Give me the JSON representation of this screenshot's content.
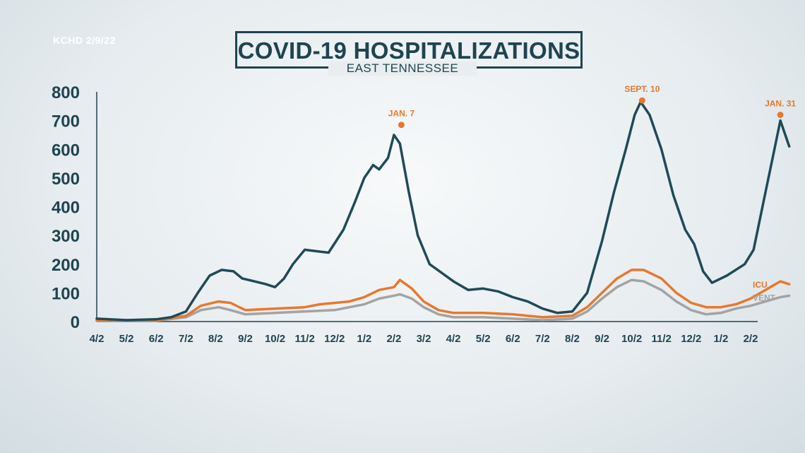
{
  "header": {
    "source": "KCHD 2/9/22",
    "title": "COVID-19 HOSPITALIZATIONS",
    "subtitle": "EAST TENNESSEE"
  },
  "colors": {
    "hospitalized": "#1f4a58",
    "icu": "#e8782e",
    "vent": "#a3a3a3",
    "axis": "#1f4450",
    "annotation": "#e8782e"
  },
  "chart_data": {
    "type": "line",
    "title": "COVID-19 HOSPITALIZATIONS",
    "subtitle": "EAST TENNESSEE",
    "xlabel": "",
    "ylabel": "",
    "ylim": [
      0,
      800
    ],
    "yticks": [
      0,
      100,
      200,
      300,
      400,
      500,
      600,
      700,
      800
    ],
    "xticks": [
      "4/2",
      "5/2",
      "6/2",
      "7/2",
      "8/2",
      "9/2",
      "10/2",
      "11/2",
      "12/2",
      "1/2",
      "2/2",
      "3/2",
      "4/2",
      "5/2",
      "6/2",
      "7/2",
      "8/2",
      "9/2",
      "10/2",
      "11/2",
      "12/2",
      "1/2",
      "2/2"
    ],
    "xlim": [
      0,
      22.3
    ],
    "grid": false,
    "series": [
      {
        "name": "",
        "points": [
          [
            0,
            10
          ],
          [
            1,
            5
          ],
          [
            2,
            8
          ],
          [
            2.5,
            15
          ],
          [
            3,
            35
          ],
          [
            3.4,
            100
          ],
          [
            3.8,
            160
          ],
          [
            4.2,
            180
          ],
          [
            4.6,
            175
          ],
          [
            4.9,
            150
          ],
          [
            5.3,
            140
          ],
          [
            5.7,
            130
          ],
          [
            6,
            120
          ],
          [
            6.3,
            150
          ],
          [
            6.6,
            200
          ],
          [
            7,
            250
          ],
          [
            7.4,
            245
          ],
          [
            7.8,
            240
          ],
          [
            8.3,
            320
          ],
          [
            8.7,
            420
          ],
          [
            9,
            500
          ],
          [
            9.3,
            545
          ],
          [
            9.5,
            530
          ],
          [
            9.8,
            570
          ],
          [
            10,
            650
          ],
          [
            10.2,
            620
          ],
          [
            10.5,
            450
          ],
          [
            10.8,
            300
          ],
          [
            11.2,
            200
          ],
          [
            11.6,
            170
          ],
          [
            12,
            140
          ],
          [
            12.5,
            110
          ],
          [
            13,
            115
          ],
          [
            13.5,
            105
          ],
          [
            14,
            85
          ],
          [
            14.5,
            70
          ],
          [
            15,
            45
          ],
          [
            15.5,
            30
          ],
          [
            16,
            35
          ],
          [
            16.5,
            100
          ],
          [
            17,
            280
          ],
          [
            17.4,
            450
          ],
          [
            17.8,
            600
          ],
          [
            18.1,
            720
          ],
          [
            18.3,
            765
          ],
          [
            18.6,
            720
          ],
          [
            19,
            600
          ],
          [
            19.4,
            440
          ],
          [
            19.8,
            320
          ],
          [
            20.1,
            270
          ],
          [
            20.4,
            175
          ],
          [
            20.7,
            135
          ],
          [
            21.2,
            160
          ],
          [
            21.8,
            200
          ],
          [
            22.1,
            250
          ],
          [
            22.5,
            450
          ],
          [
            22.8,
            600
          ],
          [
            23,
            700
          ],
          [
            23.2,
            640
          ],
          [
            23.3,
            610
          ]
        ]
      },
      {
        "name": "ICU",
        "points": [
          [
            0,
            5
          ],
          [
            2,
            5
          ],
          [
            3,
            20
          ],
          [
            3.5,
            55
          ],
          [
            4.1,
            70
          ],
          [
            4.5,
            65
          ],
          [
            5,
            40
          ],
          [
            6,
            45
          ],
          [
            7,
            50
          ],
          [
            7.5,
            60
          ],
          [
            8.5,
            70
          ],
          [
            9,
            85
          ],
          [
            9.5,
            110
          ],
          [
            10,
            120
          ],
          [
            10.2,
            145
          ],
          [
            10.6,
            115
          ],
          [
            11,
            70
          ],
          [
            11.5,
            40
          ],
          [
            12,
            30
          ],
          [
            13,
            30
          ],
          [
            14,
            25
          ],
          [
            15,
            15
          ],
          [
            16,
            20
          ],
          [
            16.5,
            50
          ],
          [
            17,
            100
          ],
          [
            17.5,
            150
          ],
          [
            18,
            180
          ],
          [
            18.4,
            180
          ],
          [
            19,
            150
          ],
          [
            19.5,
            100
          ],
          [
            20,
            65
          ],
          [
            20.5,
            50
          ],
          [
            21,
            50
          ],
          [
            21.5,
            60
          ],
          [
            22,
            80
          ],
          [
            22.5,
            110
          ],
          [
            23,
            140
          ],
          [
            23.3,
            130
          ]
        ]
      },
      {
        "name": "VENT",
        "points": [
          [
            0,
            3
          ],
          [
            2,
            3
          ],
          [
            3,
            15
          ],
          [
            3.5,
            40
          ],
          [
            4.1,
            50
          ],
          [
            4.5,
            40
          ],
          [
            5,
            25
          ],
          [
            6,
            30
          ],
          [
            7,
            35
          ],
          [
            8,
            40
          ],
          [
            9,
            60
          ],
          [
            9.5,
            80
          ],
          [
            10,
            90
          ],
          [
            10.2,
            95
          ],
          [
            10.6,
            80
          ],
          [
            11,
            50
          ],
          [
            11.5,
            25
          ],
          [
            12,
            15
          ],
          [
            13,
            15
          ],
          [
            14,
            10
          ],
          [
            15,
            5
          ],
          [
            16,
            10
          ],
          [
            16.5,
            35
          ],
          [
            17,
            80
          ],
          [
            17.5,
            120
          ],
          [
            18,
            145
          ],
          [
            18.4,
            140
          ],
          [
            19,
            110
          ],
          [
            19.5,
            70
          ],
          [
            20,
            40
          ],
          [
            20.5,
            25
          ],
          [
            21,
            30
          ],
          [
            21.5,
            45
          ],
          [
            22,
            55
          ],
          [
            22.5,
            70
          ],
          [
            23,
            85
          ],
          [
            23.3,
            90
          ]
        ]
      }
    ],
    "annotations": [
      {
        "label": "JAN. 7",
        "x": 10.25,
        "y": 685
      },
      {
        "label": "SEPT. 10",
        "x": 18.35,
        "y": 770
      },
      {
        "label": "JAN. 31",
        "x": 23.0,
        "y": 720
      }
    ],
    "series_labels": [
      {
        "name": "ICU",
        "y": 130
      },
      {
        "name": "VENT",
        "y": 85
      }
    ]
  }
}
